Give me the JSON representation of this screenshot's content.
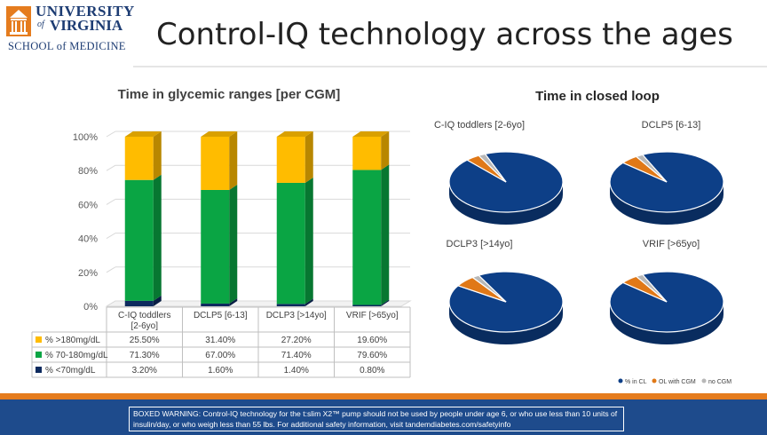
{
  "header": {
    "logo": {
      "university": "UNIVERSITY",
      "of": "of",
      "virginia": "VIRGINIA",
      "school": "SCHOOL of MEDICINE"
    },
    "title": "Control-IQ technology across the ages"
  },
  "colors": {
    "orange_accent": "#e57c1e",
    "navy": "#1e4b8c",
    "green": "#0aa544",
    "yellow": "#ffbc00",
    "dark_navy": "#0d2a5e",
    "gray": "#b8b8b8"
  },
  "footer": {
    "warning": "BOXED WARNING: Control-IQ technology for the t:slim X2™ pump should not be used by people under age 6, or who use less than 10 units of insulin/day, or who weigh less than 55 lbs. For additional safety information, visit tandemdiabetes.com/safetyinfo"
  },
  "chart_data": [
    {
      "type": "bar",
      "stacked": true,
      "title": "Time in glycemic ranges [per CGM]",
      "categories": [
        "C-IQ toddlers [2-6yo]",
        "DCLP5 [6-13]",
        "DCLP3 [>14yo]",
        "VRIF [>65yo]"
      ],
      "series": [
        {
          "name": "% <70mg/dL",
          "values": [
            3.2,
            1.6,
            1.4,
            0.8
          ],
          "labels": [
            "3.20%",
            "1.60%",
            "1.40%",
            "0.80%"
          ],
          "color": "#0d2a5e"
        },
        {
          "name": "% 70-180mg/dL",
          "values": [
            71.3,
            67.0,
            71.4,
            79.6
          ],
          "labels": [
            "71.30%",
            "67.00%",
            "71.40%",
            "79.60%"
          ],
          "color": "#0aa544"
        },
        {
          "name": "% >180mg/dL",
          "values": [
            25.5,
            31.4,
            27.2,
            19.6
          ],
          "labels": [
            "25.50%",
            "31.40%",
            "27.20%",
            "19.60%"
          ],
          "color": "#ffbc00"
        }
      ],
      "y_ticks": [
        "0%",
        "20%",
        "40%",
        "60%",
        "80%",
        "100%"
      ],
      "ylim": [
        0,
        100
      ],
      "grid": true,
      "legend": "data-table"
    },
    {
      "type": "pie",
      "title": "Time in closed loop",
      "legend": [
        "% in CL",
        "OL with CGM",
        "no CGM"
      ],
      "legend_colors": [
        "#0d3f87",
        "#e07817",
        "#b8b8b8"
      ],
      "legend_position": "bottom-right",
      "pies": [
        {
          "title": "C-IQ toddlers [2-6yo]",
          "values": [
            94,
            4,
            2
          ]
        },
        {
          "title": "DCLP5 [6-13]",
          "values": [
            93,
            5,
            2
          ]
        },
        {
          "title": "DCLP3 [>14yo]",
          "values": [
            92,
            6,
            2
          ]
        },
        {
          "title": "VRIF [>65yo]",
          "values": [
            93,
            5,
            2
          ]
        }
      ]
    }
  ]
}
